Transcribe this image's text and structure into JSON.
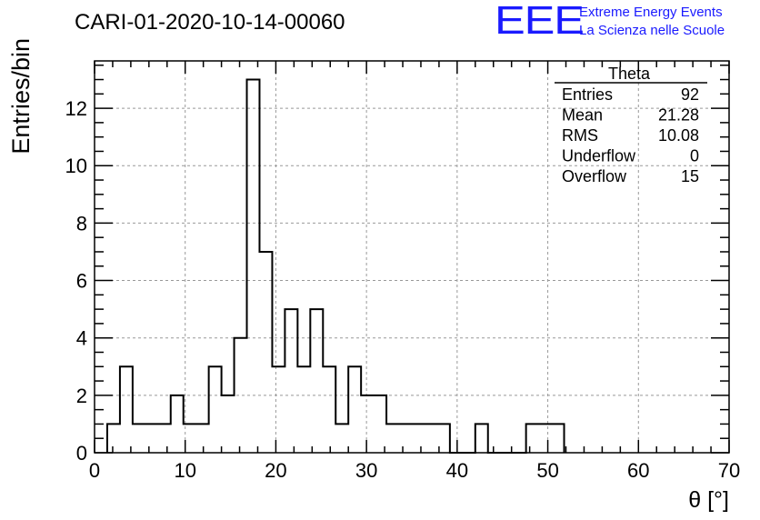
{
  "chart_data": {
    "type": "histogram",
    "title": "CARI-01-2020-10-14-00060",
    "xlabel": "θ [°]",
    "ylabel": "Entries/bin",
    "xlim": [
      0,
      70
    ],
    "ylim": [
      0,
      13.65
    ],
    "x_ticks": [
      "0",
      "10",
      "20",
      "30",
      "40",
      "50",
      "60",
      "70"
    ],
    "y_ticks": [
      "0",
      "2",
      "4",
      "6",
      "8",
      "10",
      "12"
    ],
    "grid": true,
    "bin_width": 1.4,
    "bin_start": 1.4,
    "values": [
      1,
      3,
      1,
      1,
      1,
      2,
      1,
      1,
      3,
      2,
      4,
      13,
      7,
      3,
      5,
      3,
      5,
      3,
      1,
      3,
      2,
      2,
      1,
      1,
      1,
      1,
      1,
      0,
      0,
      1,
      0,
      0,
      0,
      1,
      1,
      1
    ],
    "stats_box": {
      "title": "Theta",
      "rows": [
        {
          "label": "Entries",
          "value": "92"
        },
        {
          "label": "Mean",
          "value": "21.28"
        },
        {
          "label": "RMS",
          "value": "10.08"
        },
        {
          "label": "Underflow",
          "value": "0"
        },
        {
          "label": "Overflow",
          "value": "15"
        }
      ]
    }
  },
  "logo": {
    "mark": "EEE",
    "line1": "Extreme Energy Events",
    "line2": "La Scienza nelle Scuole"
  }
}
